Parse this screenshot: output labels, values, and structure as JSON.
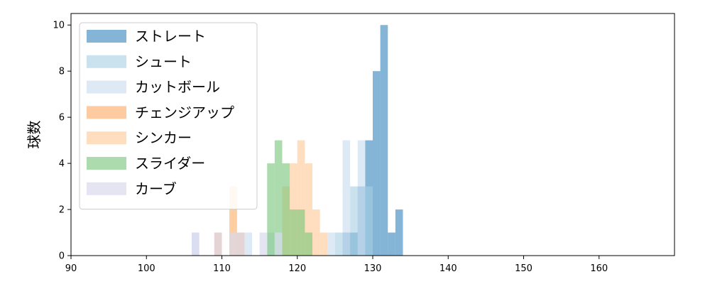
{
  "chart_data": {
    "type": "bar",
    "title": "",
    "xlabel": "",
    "ylabel": "球数",
    "xlim": [
      90,
      170
    ],
    "ylim": [
      0,
      10.5
    ],
    "xticks": [
      90,
      100,
      110,
      120,
      130,
      140,
      150,
      160
    ],
    "yticks": [
      0,
      2,
      4,
      6,
      8,
      10
    ],
    "grid": false,
    "legend_position": "top-left",
    "series": [
      {
        "name": "ストレート",
        "color": "#1f77b4",
        "opacity": 0.55,
        "bins": [
          {
            "x0": 126,
            "x1": 127,
            "count": 1
          },
          {
            "x0": 127,
            "x1": 128,
            "count": 1
          },
          {
            "x0": 128,
            "x1": 129,
            "count": 3
          },
          {
            "x0": 129,
            "x1": 130,
            "count": 5
          },
          {
            "x0": 130,
            "x1": 131,
            "count": 8
          },
          {
            "x0": 131,
            "x1": 132,
            "count": 10
          },
          {
            "x0": 132,
            "x1": 133,
            "count": 1
          },
          {
            "x0": 133,
            "x1": 134,
            "count": 2
          }
        ]
      },
      {
        "name": "シュート",
        "color": "#a6cee3",
        "opacity": 0.6,
        "bins": [
          {
            "x0": 125,
            "x1": 126,
            "count": 1
          },
          {
            "x0": 126,
            "x1": 127,
            "count": 1
          },
          {
            "x0": 127,
            "x1": 128,
            "count": 3
          },
          {
            "x0": 128,
            "x1": 129,
            "count": 3
          },
          {
            "x0": 129,
            "x1": 130,
            "count": 3
          }
        ]
      },
      {
        "name": "カットボール",
        "color": "#c6dbef",
        "opacity": 0.6,
        "bins": [
          {
            "x0": 106,
            "x1": 107,
            "count": 1
          },
          {
            "x0": 113,
            "x1": 114,
            "count": 1
          },
          {
            "x0": 116,
            "x1": 117,
            "count": 1
          },
          {
            "x0": 124,
            "x1": 125,
            "count": 1
          },
          {
            "x0": 126,
            "x1": 127,
            "count": 5
          },
          {
            "x0": 128,
            "x1": 129,
            "count": 5
          }
        ]
      },
      {
        "name": "チェンジアップ",
        "color": "#fdae6b",
        "opacity": 0.65,
        "bins": [
          {
            "x0": 109,
            "x1": 110,
            "count": 1
          },
          {
            "x0": 111,
            "x1": 112,
            "count": 2
          },
          {
            "x0": 112,
            "x1": 113,
            "count": 1
          }
        ]
      },
      {
        "name": "シンカー",
        "color": "#fdd0a2",
        "opacity": 0.7,
        "bins": [
          {
            "x0": 111,
            "x1": 112,
            "count": 3
          },
          {
            "x0": 118,
            "x1": 119,
            "count": 3
          },
          {
            "x0": 119,
            "x1": 120,
            "count": 4
          },
          {
            "x0": 120,
            "x1": 121,
            "count": 5
          },
          {
            "x0": 121,
            "x1": 122,
            "count": 4
          },
          {
            "x0": 122,
            "x1": 123,
            "count": 2
          },
          {
            "x0": 123,
            "x1": 124,
            "count": 1
          }
        ]
      },
      {
        "name": "スライダー",
        "color": "#74c476",
        "opacity": 0.6,
        "bins": [
          {
            "x0": 116,
            "x1": 117,
            "count": 4
          },
          {
            "x0": 117,
            "x1": 118,
            "count": 5
          },
          {
            "x0": 118,
            "x1": 119,
            "count": 4
          },
          {
            "x0": 119,
            "x1": 120,
            "count": 2
          },
          {
            "x0": 120,
            "x1": 121,
            "count": 2
          },
          {
            "x0": 121,
            "x1": 122,
            "count": 1
          }
        ]
      },
      {
        "name": "カーブ",
        "color": "#d9d9ee",
        "opacity": 0.7,
        "bins": [
          {
            "x0": 106,
            "x1": 107,
            "count": 1
          },
          {
            "x0": 109,
            "x1": 110,
            "count": 1
          },
          {
            "x0": 111,
            "x1": 112,
            "count": 1
          },
          {
            "x0": 112,
            "x1": 113,
            "count": 1
          },
          {
            "x0": 115,
            "x1": 116,
            "count": 1
          },
          {
            "x0": 117,
            "x1": 118,
            "count": 1
          }
        ]
      }
    ]
  }
}
